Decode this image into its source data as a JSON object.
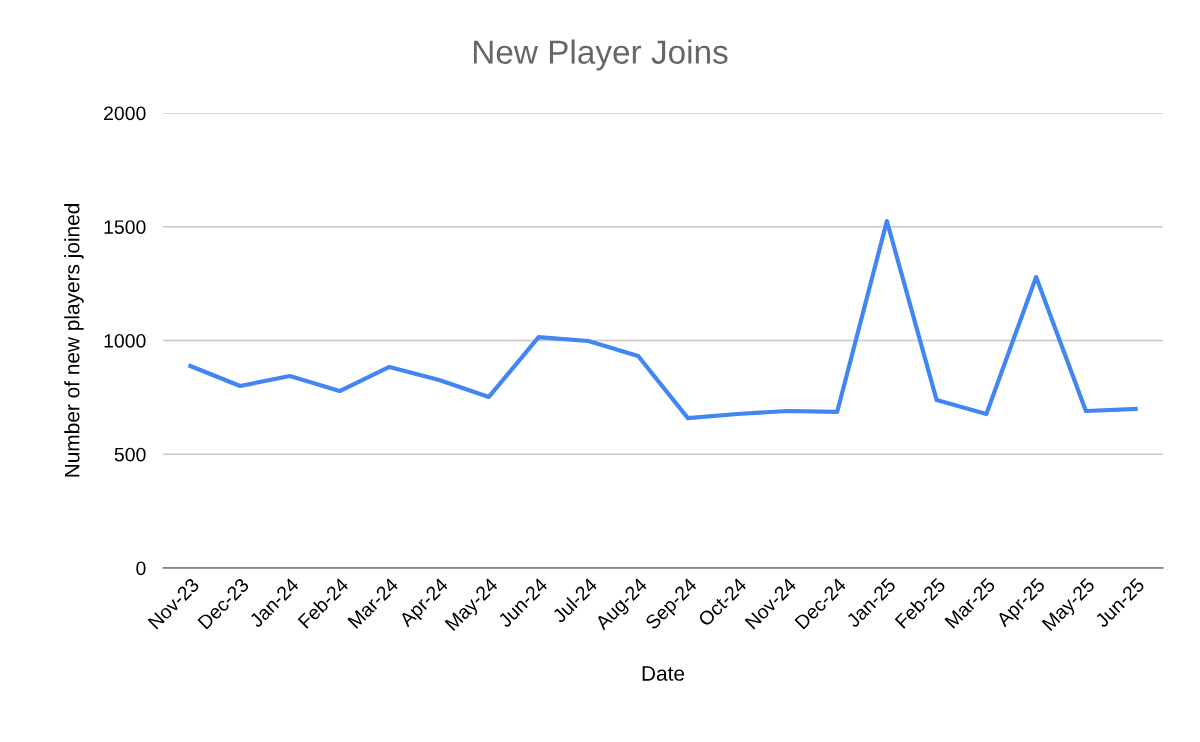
{
  "chart_data": {
    "type": "line",
    "title": "New Player Joins",
    "xlabel": "Date",
    "ylabel": "Number of new players joined",
    "categories": [
      "Nov-23",
      "Dec-23",
      "Jan-24",
      "Feb-24",
      "Mar-24",
      "Apr-24",
      "May-24",
      "Jun-24",
      "Jul-24",
      "Aug-24",
      "Sep-24",
      "Oct-24",
      "Nov-24",
      "Dec-24",
      "Jan-25",
      "Feb-25",
      "Mar-25",
      "Apr-25",
      "May-25",
      "Jun-25"
    ],
    "series": [
      {
        "color": "#4285f4",
        "values": [
          888,
          800,
          844,
          778,
          884,
          826,
          752,
          1015,
          998,
          932,
          659,
          677,
          690,
          686,
          1525,
          738,
          677,
          1279,
          690,
          699
        ]
      }
    ],
    "ylim": [
      0,
      2000
    ],
    "yticks": [
      0,
      500,
      1000,
      1500,
      2000
    ],
    "grid": "y",
    "marker": "none",
    "line_style": "solid"
  }
}
